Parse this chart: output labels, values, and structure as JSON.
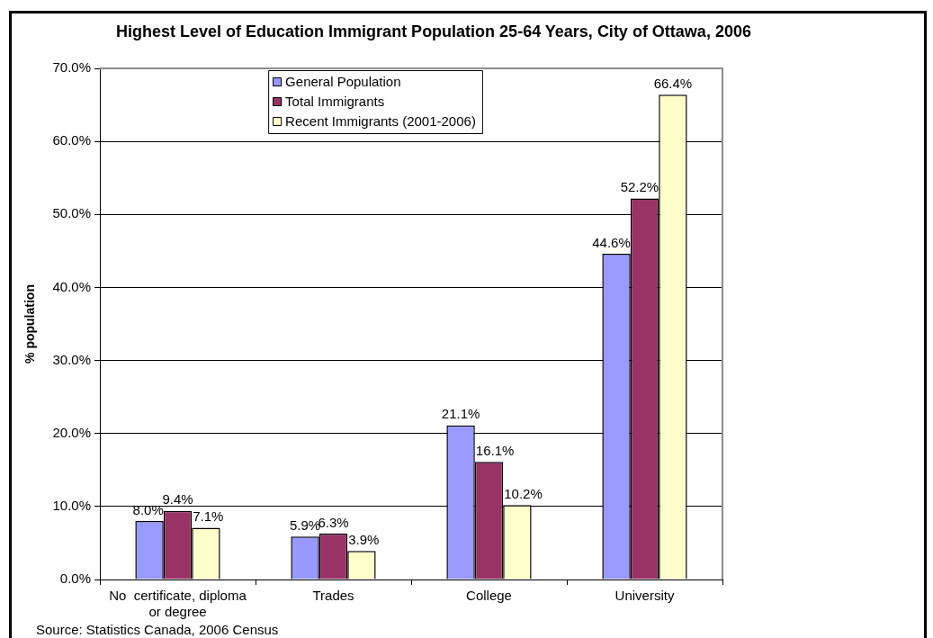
{
  "chart_data": {
    "type": "bar",
    "title": "Highest Level of Education Immigrant Population 25-64 Years, City of Ottawa, 2006",
    "ylabel": "% population",
    "categories": [
      "No  certificate, diploma or degree",
      "Trades",
      "College",
      "University"
    ],
    "series": [
      {
        "name": "General Population",
        "color": "#9999ff",
        "values": [
          8.0,
          5.9,
          21.1,
          44.6
        ],
        "value_labels": [
          "8.0%",
          "5.9%",
          "21.1%",
          "44.6%"
        ]
      },
      {
        "name": "Total Immigrants",
        "color": "#993366",
        "values": [
          9.4,
          6.3,
          16.1,
          52.2
        ],
        "value_labels": [
          "9.4%",
          "6.3%",
          "16.1%",
          "52.2%"
        ]
      },
      {
        "name": "Recent Immigrants (2001-2006)",
        "color": "#ffffcc",
        "values": [
          7.1,
          3.9,
          10.2,
          66.4
        ],
        "value_labels": [
          "7.1%",
          "3.9%",
          "10.2%",
          "66.4%"
        ]
      }
    ],
    "ylim": [
      0,
      70
    ],
    "yticks": [
      {
        "value": 0,
        "label": "0.0%"
      },
      {
        "value": 10,
        "label": "10.0%"
      },
      {
        "value": 20,
        "label": "20.0%"
      },
      {
        "value": 30,
        "label": "30.0%"
      },
      {
        "value": 40,
        "label": "40.0%"
      },
      {
        "value": 50,
        "label": "50.0%"
      },
      {
        "value": 60,
        "label": "60.0%"
      },
      {
        "value": 70,
        "label": "70.0%"
      }
    ],
    "grid": "y",
    "legend": "top",
    "annotations": [
      "Source: Statistics Canada, 2006 Census"
    ]
  }
}
